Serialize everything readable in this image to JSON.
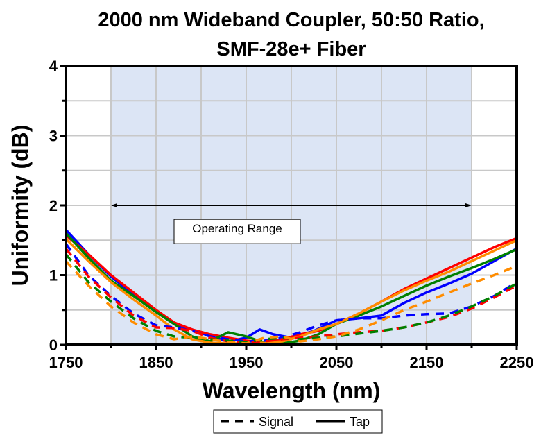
{
  "chart_data": {
    "type": "line",
    "title": [
      "2000 nm Wideband Coupler, 50:50 Ratio,",
      "SMF-28e+ Fiber"
    ],
    "xlabel": "Wavelength (nm)",
    "ylabel": "Uniformity (dB)",
    "xlim": [
      1750,
      2250
    ],
    "ylim": [
      0,
      4
    ],
    "xticks": [
      1750,
      1850,
      1950,
      2050,
      2150,
      2250
    ],
    "xticks_minor": [
      1800,
      1900,
      2000,
      2100,
      2200
    ],
    "yticks": [
      0,
      1,
      2,
      3,
      4
    ],
    "yticks_minor": [
      0.5,
      1.5,
      2.5,
      3.5
    ],
    "grid": true,
    "shaded_region": {
      "x": [
        1800,
        2200
      ],
      "color": "#dce5f5"
    },
    "annotation": {
      "text": "Operating Range",
      "arrow_x": [
        1800,
        2200
      ],
      "arrow_y": 2.0,
      "label_x": 1940,
      "label_y": 1.67
    },
    "legend": {
      "position": "bottom-center",
      "entries": [
        {
          "label": "Signal",
          "style": "dashed"
        },
        {
          "label": "Tap",
          "style": "solid"
        }
      ]
    },
    "colors": {
      "blue": "#0000ff",
      "red": "#ff0000",
      "green": "#008000",
      "orange": "#ff8c00"
    },
    "series": [
      {
        "name": "Tap (blue)",
        "style": "solid",
        "color": "blue",
        "x": [
          1750,
          1775,
          1800,
          1825,
          1850,
          1870,
          1890,
          1910,
          1930,
          1950,
          1965,
          1980,
          2000,
          2025,
          2050,
          2075,
          2100,
          2125,
          2150,
          2175,
          2200,
          2225,
          2250
        ],
        "y": [
          1.65,
          1.3,
          0.98,
          0.72,
          0.48,
          0.3,
          0.22,
          0.12,
          0.05,
          0.1,
          0.22,
          0.15,
          0.1,
          0.2,
          0.35,
          0.38,
          0.42,
          0.6,
          0.75,
          0.88,
          1.02,
          1.2,
          1.38
        ]
      },
      {
        "name": "Tap (red)",
        "style": "solid",
        "color": "red",
        "x": [
          1750,
          1775,
          1800,
          1825,
          1850,
          1870,
          1890,
          1910,
          1930,
          1950,
          1970,
          1990,
          2010,
          2030,
          2050,
          2075,
          2100,
          2125,
          2150,
          2175,
          2200,
          2225,
          2250
        ],
        "y": [
          1.57,
          1.3,
          1.0,
          0.75,
          0.5,
          0.32,
          0.22,
          0.15,
          0.1,
          0.06,
          0.04,
          0.08,
          0.15,
          0.2,
          0.3,
          0.45,
          0.62,
          0.8,
          0.95,
          1.1,
          1.25,
          1.4,
          1.53
        ]
      },
      {
        "name": "Tap (green)",
        "style": "solid",
        "color": "green",
        "x": [
          1750,
          1775,
          1800,
          1825,
          1850,
          1870,
          1890,
          1910,
          1930,
          1950,
          1970,
          1990,
          2010,
          2030,
          2050,
          2075,
          2100,
          2125,
          2150,
          2175,
          2200,
          2225,
          2250
        ],
        "y": [
          1.6,
          1.25,
          0.92,
          0.7,
          0.47,
          0.3,
          0.12,
          0.05,
          0.18,
          0.12,
          0.03,
          0.02,
          0.06,
          0.15,
          0.3,
          0.42,
          0.55,
          0.7,
          0.85,
          0.98,
          1.1,
          1.23,
          1.37
        ]
      },
      {
        "name": "Tap (orange)",
        "style": "solid",
        "color": "orange",
        "x": [
          1750,
          1775,
          1800,
          1825,
          1850,
          1870,
          1890,
          1910,
          1930,
          1950,
          1970,
          1990,
          2010,
          2030,
          2050,
          2075,
          2100,
          2125,
          2150,
          2175,
          2200,
          2225,
          2250
        ],
        "y": [
          1.52,
          1.2,
          0.9,
          0.65,
          0.42,
          0.22,
          0.08,
          0.03,
          0.02,
          0.02,
          0.03,
          0.05,
          0.12,
          0.22,
          0.3,
          0.45,
          0.62,
          0.78,
          0.92,
          1.05,
          1.2,
          1.35,
          1.5
        ]
      },
      {
        "name": "Signal (blue)",
        "style": "dashed",
        "color": "blue",
        "x": [
          1750,
          1775,
          1800,
          1825,
          1850,
          1870,
          1890,
          1910,
          1930,
          1950,
          1970,
          1990,
          2010,
          2030,
          2050,
          2075,
          2100,
          2125,
          2150,
          2175,
          2200,
          2225,
          2250
        ],
        "y": [
          1.45,
          1.0,
          0.7,
          0.45,
          0.28,
          0.25,
          0.2,
          0.12,
          0.08,
          0.05,
          0.06,
          0.1,
          0.18,
          0.28,
          0.35,
          0.38,
          0.38,
          0.42,
          0.44,
          0.45,
          0.55,
          0.7,
          0.9
        ]
      },
      {
        "name": "Signal (red)",
        "style": "dashed",
        "color": "red",
        "x": [
          1750,
          1775,
          1800,
          1825,
          1850,
          1870,
          1890,
          1910,
          1930,
          1950,
          1970,
          1990,
          2010,
          2030,
          2050,
          2075,
          2100,
          2125,
          2150,
          2175,
          2200,
          2225,
          2250
        ],
        "y": [
          1.38,
          0.98,
          0.68,
          0.42,
          0.25,
          0.24,
          0.2,
          0.1,
          0.05,
          0.03,
          0.05,
          0.08,
          0.1,
          0.12,
          0.15,
          0.18,
          0.2,
          0.25,
          0.32,
          0.4,
          0.52,
          0.68,
          0.85
        ]
      },
      {
        "name": "Signal (green)",
        "style": "dashed",
        "color": "green",
        "x": [
          1750,
          1775,
          1800,
          1825,
          1850,
          1870,
          1890,
          1910,
          1930,
          1950,
          1970,
          1990,
          2010,
          2030,
          2050,
          2075,
          2100,
          2125,
          2150,
          2175,
          2200,
          2225,
          2250
        ],
        "y": [
          1.3,
          0.9,
          0.62,
          0.38,
          0.2,
          0.12,
          0.1,
          0.08,
          0.06,
          0.04,
          0.08,
          0.1,
          0.08,
          0.1,
          0.12,
          0.16,
          0.2,
          0.25,
          0.32,
          0.42,
          0.55,
          0.7,
          0.88
        ]
      },
      {
        "name": "Signal (orange)",
        "style": "dashed",
        "color": "orange",
        "x": [
          1750,
          1775,
          1800,
          1825,
          1850,
          1870,
          1890,
          1910,
          1930,
          1950,
          1970,
          1990,
          2010,
          2030,
          2050,
          2075,
          2100,
          2125,
          2150,
          2175,
          2200,
          2225,
          2250
        ],
        "y": [
          1.2,
          0.85,
          0.55,
          0.32,
          0.15,
          0.08,
          0.12,
          0.08,
          0.04,
          0.02,
          0.1,
          0.12,
          0.05,
          0.08,
          0.12,
          0.22,
          0.35,
          0.5,
          0.62,
          0.75,
          0.88,
          1.0,
          1.13
        ]
      }
    ]
  }
}
